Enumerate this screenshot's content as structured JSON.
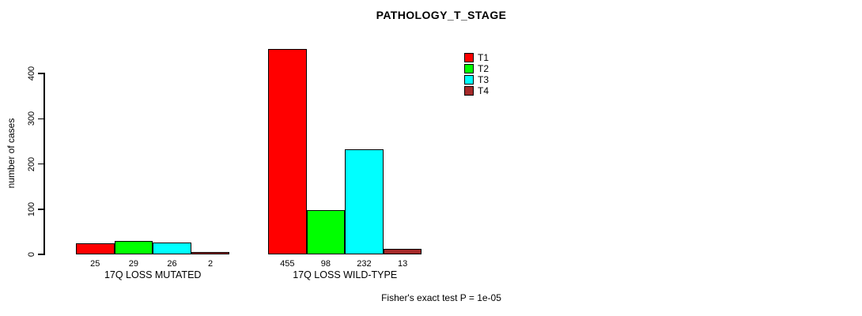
{
  "chart_data": {
    "type": "bar",
    "title": "PATHOLOGY_T_STAGE",
    "ylabel": "number of cases",
    "xlabel": "",
    "ylim": [
      0,
      460
    ],
    "yticks": [
      0,
      100,
      200,
      300,
      400
    ],
    "grid": false,
    "legend_position": "top-right",
    "categories": [
      "17Q LOSS MUTATED",
      "17Q LOSS WILD-TYPE"
    ],
    "series": [
      {
        "name": "T1",
        "color": "#ff0000",
        "values": [
          25,
          455
        ]
      },
      {
        "name": "T2",
        "color": "#00ff00",
        "values": [
          29,
          98
        ]
      },
      {
        "name": "T3",
        "color": "#00ffff",
        "values": [
          26,
          232
        ]
      },
      {
        "name": "T4",
        "color": "#a52a2a",
        "values": [
          2,
          13
        ]
      }
    ],
    "bar_value_labels_shown": true,
    "annotation": "Fisher's exact test P = 1e-05"
  }
}
